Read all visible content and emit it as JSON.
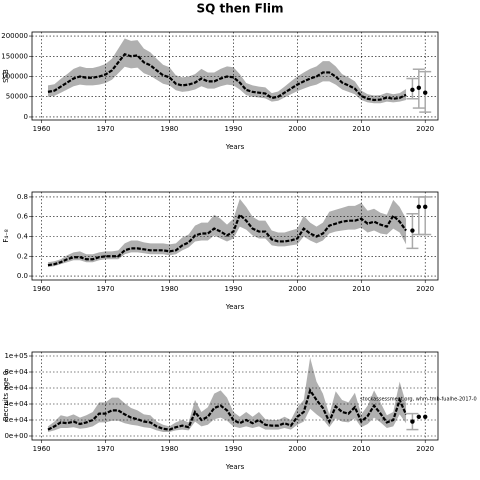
{
  "title": "SQ then Flim",
  "chart_data": [
    {
      "type": "line",
      "ylabel": "SSB",
      "xlabel": "Years",
      "grid": true,
      "color": "#000000",
      "band_color": "#b0b0b0",
      "forecast_color": "#aaaaaa",
      "xlim": [
        1958.5,
        2022
      ],
      "xticks": [
        1960,
        1970,
        1980,
        1990,
        2000,
        2010,
        2020
      ],
      "ylim": [
        -7500,
        210000
      ],
      "yticks": [
        0,
        50000,
        100000,
        150000,
        200000
      ],
      "x": [
        1961,
        1962,
        1963,
        1964,
        1965,
        1966,
        1967,
        1968,
        1969,
        1970,
        1971,
        1972,
        1973,
        1974,
        1975,
        1976,
        1977,
        1978,
        1979,
        1980,
        1981,
        1982,
        1983,
        1984,
        1985,
        1986,
        1987,
        1988,
        1989,
        1990,
        1991,
        1992,
        1993,
        1994,
        1995,
        1996,
        1997,
        1998,
        1999,
        2000,
        2001,
        2002,
        2003,
        2004,
        2005,
        2006,
        2007,
        2008,
        2009,
        2010,
        2011,
        2012,
        2013,
        2014,
        2015,
        2016,
        2017
      ],
      "values": [
        62000,
        65000,
        75000,
        85000,
        95000,
        100000,
        97000,
        97000,
        100000,
        105000,
        115000,
        135000,
        155000,
        150000,
        152000,
        135000,
        128000,
        115000,
        103000,
        98000,
        82000,
        78000,
        80000,
        85000,
        95000,
        88000,
        88000,
        95000,
        100000,
        98000,
        85000,
        67000,
        62000,
        60000,
        58000,
        47000,
        50000,
        60000,
        70000,
        80000,
        88000,
        95000,
        100000,
        110000,
        110000,
        100000,
        85000,
        78000,
        70000,
        52000,
        45000,
        42000,
        43000,
        48000,
        45000,
        47000,
        55000
      ],
      "lower": [
        50000,
        52000,
        60000,
        68000,
        76000,
        80000,
        78000,
        78000,
        80000,
        84000,
        92000,
        108000,
        124000,
        120000,
        122000,
        108000,
        102000,
        92000,
        82000,
        78000,
        66000,
        62000,
        64000,
        68000,
        76000,
        70000,
        70000,
        76000,
        80000,
        78000,
        68000,
        54000,
        50000,
        48000,
        46000,
        38000,
        40000,
        48000,
        56000,
        64000,
        70000,
        76000,
        80000,
        88000,
        88000,
        80000,
        68000,
        62000,
        56000,
        42000,
        36000,
        34000,
        34000,
        38000,
        36000,
        38000,
        42000
      ],
      "upper": [
        78000,
        81000,
        94000,
        106000,
        119000,
        125000,
        121000,
        121000,
        125000,
        131000,
        144000,
        169000,
        194000,
        188000,
        190000,
        169000,
        160000,
        144000,
        129000,
        123000,
        103000,
        98000,
        100000,
        106000,
        119000,
        110000,
        110000,
        119000,
        125000,
        123000,
        106000,
        84000,
        78000,
        75000,
        73000,
        59000,
        63000,
        75000,
        88000,
        100000,
        110000,
        119000,
        125000,
        138000,
        138000,
        125000,
        106000,
        98000,
        88000,
        65000,
        56000,
        53000,
        54000,
        60000,
        56000,
        59000,
        69000
      ],
      "forecast": {
        "x": [
          2018,
          2019,
          2020
        ],
        "values": [
          67000,
          72000,
          60000
        ],
        "lower": [
          45000,
          22000,
          12000
        ],
        "upper": [
          95000,
          118000,
          112000
        ]
      }
    },
    {
      "type": "line",
      "ylabel": "F₄₋₈",
      "xlabel": "Years",
      "grid": true,
      "color": "#000000",
      "band_color": "#b0b0b0",
      "forecast_color": "#aaaaaa",
      "xlim": [
        1958.5,
        2022
      ],
      "xticks": [
        1960,
        1970,
        1980,
        1990,
        2000,
        2010,
        2020
      ],
      "ylim": [
        -0.04,
        0.85
      ],
      "yticks": [
        {
          "value": 0,
          "label": "0.0"
        },
        0.2,
        0.4,
        0.6,
        0.8
      ],
      "x": [
        1961,
        1962,
        1963,
        1964,
        1965,
        1966,
        1967,
        1968,
        1969,
        1970,
        1971,
        1972,
        1973,
        1974,
        1975,
        1976,
        1977,
        1978,
        1979,
        1980,
        1981,
        1982,
        1983,
        1984,
        1985,
        1986,
        1987,
        1988,
        1989,
        1990,
        1991,
        1992,
        1993,
        1994,
        1995,
        1996,
        1997,
        1998,
        1999,
        2000,
        2001,
        2002,
        2003,
        2004,
        2005,
        2006,
        2007,
        2008,
        2009,
        2010,
        2011,
        2012,
        2013,
        2014,
        2015,
        2016,
        2017
      ],
      "values": [
        0.11,
        0.12,
        0.14,
        0.17,
        0.19,
        0.19,
        0.17,
        0.17,
        0.19,
        0.2,
        0.2,
        0.2,
        0.26,
        0.28,
        0.28,
        0.27,
        0.26,
        0.26,
        0.26,
        0.25,
        0.26,
        0.31,
        0.34,
        0.41,
        0.43,
        0.43,
        0.48,
        0.45,
        0.41,
        0.45,
        0.62,
        0.56,
        0.48,
        0.45,
        0.45,
        0.37,
        0.35,
        0.35,
        0.36,
        0.38,
        0.48,
        0.43,
        0.4,
        0.43,
        0.51,
        0.53,
        0.55,
        0.56,
        0.56,
        0.58,
        0.53,
        0.55,
        0.52,
        0.5,
        0.61,
        0.55,
        0.46
      ],
      "lower": [
        0.09,
        0.1,
        0.12,
        0.14,
        0.16,
        0.16,
        0.14,
        0.14,
        0.16,
        0.17,
        0.17,
        0.17,
        0.22,
        0.24,
        0.24,
        0.23,
        0.22,
        0.22,
        0.22,
        0.21,
        0.22,
        0.26,
        0.29,
        0.35,
        0.36,
        0.36,
        0.41,
        0.38,
        0.35,
        0.38,
        0.5,
        0.47,
        0.41,
        0.38,
        0.38,
        0.31,
        0.3,
        0.3,
        0.31,
        0.32,
        0.4,
        0.36,
        0.33,
        0.36,
        0.43,
        0.45,
        0.46,
        0.47,
        0.47,
        0.49,
        0.44,
        0.46,
        0.43,
        0.42,
        0.48,
        0.44,
        0.32
      ],
      "upper": [
        0.14,
        0.15,
        0.17,
        0.21,
        0.24,
        0.25,
        0.22,
        0.22,
        0.24,
        0.25,
        0.25,
        0.26,
        0.33,
        0.36,
        0.36,
        0.34,
        0.33,
        0.33,
        0.33,
        0.32,
        0.33,
        0.39,
        0.42,
        0.51,
        0.54,
        0.54,
        0.62,
        0.58,
        0.52,
        0.58,
        0.78,
        0.7,
        0.6,
        0.56,
        0.56,
        0.46,
        0.44,
        0.44,
        0.46,
        0.48,
        0.61,
        0.54,
        0.5,
        0.54,
        0.65,
        0.67,
        0.69,
        0.71,
        0.71,
        0.74,
        0.66,
        0.68,
        0.64,
        0.62,
        0.77,
        0.7,
        0.58
      ],
      "forecast": {
        "x": [
          2018,
          2019,
          2020
        ],
        "values": [
          0.46,
          0.7,
          0.7
        ],
        "lower": [
          0.28,
          0.42,
          0.42
        ],
        "upper": [
          0.63,
          0.8,
          0.8
        ]
      }
    },
    {
      "type": "line",
      "ylabel": "Recruits age 0",
      "xlabel": "Years",
      "grid": true,
      "color": "#000000",
      "band_color": "#b0b0b0",
      "forecast_color": "#aaaaaa",
      "annotation": "stockassessment.org, whm-tmb-fualhe-2017-0",
      "xlim": [
        1958.5,
        2022
      ],
      "xticks": [
        1960,
        1970,
        1980,
        1990,
        2000,
        2010,
        2020
      ],
      "ylim": [
        -5000,
        105000
      ],
      "yticks": [
        {
          "value": 0,
          "label": "0e+00"
        },
        {
          "value": 20000,
          "label": "2e+04"
        },
        {
          "value": 40000,
          "label": "4e+04"
        },
        {
          "value": 60000,
          "label": "6e+04"
        },
        {
          "value": 80000,
          "label": "8e+04"
        },
        {
          "value": 100000,
          "label": "1e+05"
        }
      ],
      "x": [
        1961,
        1962,
        1963,
        1964,
        1965,
        1966,
        1967,
        1968,
        1969,
        1970,
        1971,
        1972,
        1973,
        1974,
        1975,
        1976,
        1977,
        1978,
        1979,
        1980,
        1981,
        1982,
        1983,
        1984,
        1985,
        1986,
        1987,
        1988,
        1989,
        1990,
        1991,
        1992,
        1993,
        1994,
        1995,
        1996,
        1997,
        1998,
        1999,
        2000,
        2001,
        2002,
        2003,
        2004,
        2005,
        2006,
        2007,
        2008,
        2009,
        2010,
        2011,
        2012,
        2013,
        2014,
        2015,
        2016,
        2017
      ],
      "values": [
        8000,
        12000,
        17000,
        16000,
        18000,
        15000,
        17000,
        20000,
        28000,
        28000,
        32000,
        32000,
        27000,
        23000,
        21000,
        18000,
        17000,
        12000,
        9000,
        8000,
        11000,
        13000,
        11000,
        30000,
        20000,
        24000,
        35000,
        38000,
        32000,
        20000,
        16000,
        20000,
        16000,
        20000,
        14000,
        13000,
        13000,
        16000,
        13000,
        24000,
        30000,
        57000,
        45000,
        35000,
        18000,
        37000,
        30000,
        28000,
        36000,
        18000,
        25000,
        38000,
        28000,
        17000,
        20000,
        45000,
        27000
      ],
      "lower": [
        5000,
        7000,
        10000,
        10000,
        11000,
        9000,
        10000,
        12000,
        17000,
        17000,
        19000,
        19000,
        16000,
        14000,
        13000,
        11000,
        10000,
        7000,
        5000,
        5000,
        7000,
        8000,
        7000,
        18000,
        12000,
        14000,
        21000,
        23000,
        19000,
        12000,
        10000,
        12000,
        10000,
        12000,
        8000,
        8000,
        8000,
        10000,
        8000,
        14000,
        18000,
        34000,
        27000,
        21000,
        11000,
        22000,
        18000,
        17000,
        22000,
        11000,
        15000,
        23000,
        17000,
        10000,
        12000,
        27000,
        16000
      ],
      "upper": [
        12000,
        18000,
        26000,
        24000,
        27000,
        23000,
        26000,
        30000,
        42000,
        42000,
        48000,
        48000,
        41000,
        35000,
        32000,
        27000,
        26000,
        18000,
        14000,
        12000,
        17000,
        20000,
        17000,
        45000,
        30000,
        36000,
        53000,
        57000,
        48000,
        30000,
        24000,
        30000,
        24000,
        30000,
        21000,
        20000,
        20000,
        24000,
        20000,
        36000,
        45000,
        98000,
        68000,
        53000,
        27000,
        56000,
        45000,
        42000,
        54000,
        27000,
        38000,
        57000,
        42000,
        26000,
        30000,
        68000,
        41000
      ],
      "forecast": {
        "x": [
          2018,
          2019,
          2020
        ],
        "values": [
          18000,
          24000,
          24000
        ],
        "lower": [
          8000,
          null,
          null
        ],
        "upper": [
          28000,
          null,
          null
        ]
      }
    }
  ]
}
